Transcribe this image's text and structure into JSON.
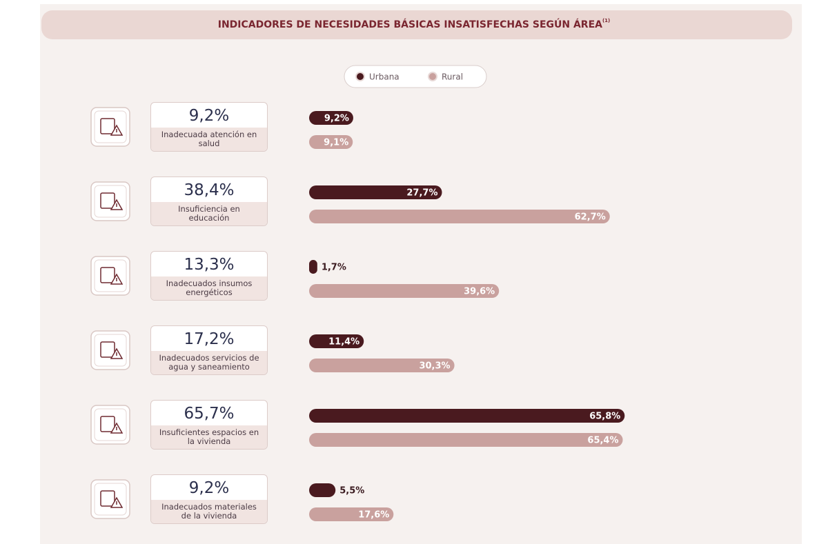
{
  "chart_data": {
    "type": "bar",
    "title": "INDICADORES DE NECESIDADES BÁSICAS INSATISFECHAS SEGÚN ÁREA",
    "title_note": "(1)",
    "categories": [
      "Inadecuada atención en salud",
      "Insuficiencia en educación",
      "Inadecuados insumos energéticos",
      "Inadecuados servicios de agua y saneamiento",
      "Insuficientes espacios en la vivienda",
      "Inadecuados materiales de la vivienda"
    ],
    "totals": [
      "9,2%",
      "38,4%",
      "13,3%",
      "17,2%",
      "65,7%",
      "9,2%"
    ],
    "series": [
      {
        "name": "Urbana",
        "color": "#4a1a1f",
        "values": [
          9.2,
          27.7,
          1.7,
          11.4,
          65.8,
          5.5
        ],
        "value_labels": [
          "9,2%",
          "27,7%",
          "1,7%",
          "11,4%",
          "65,8%",
          "5,5%"
        ]
      },
      {
        "name": "Rural",
        "color": "#c9a19e",
        "values": [
          9.1,
          62.7,
          39.6,
          30.3,
          65.4,
          17.6
        ],
        "value_labels": [
          "9,1%",
          "62,7%",
          "39,6%",
          "30,3%",
          "65,4%",
          "17,6%"
        ]
      }
    ],
    "legend": "top"
  }
}
